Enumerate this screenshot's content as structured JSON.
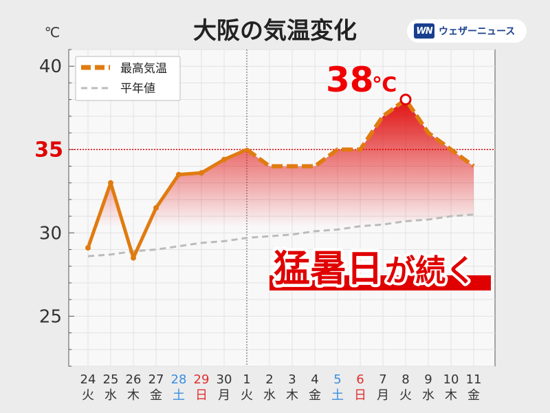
{
  "header": {
    "title": "大阪の気温変化",
    "unit": "℃"
  },
  "logo": {
    "mark": "WN",
    "text": "ウェザーニュース"
  },
  "annotations": {
    "peak_value": "38",
    "peak_unit": "℃",
    "threshold_label": "35",
    "banner_main": "猛暑日",
    "banner_sub": "が続く"
  },
  "colors": {
    "max_line": "#e07b10",
    "normal_line": "#bbbbbb",
    "fill": "#e01010",
    "threshold": "#e00000",
    "saturday": "#3a8ee0",
    "sunday": "#e03030",
    "banner_bg": "#e00000"
  },
  "chart_data": {
    "type": "line",
    "title": "大阪の気温変化",
    "ylabel": "℃",
    "ylim": [
      22,
      41
    ],
    "yticks": [
      25,
      30,
      35,
      40
    ],
    "threshold": 35,
    "grid": true,
    "legend_position": "top-left",
    "categories": [
      "24",
      "25",
      "26",
      "27",
      "28",
      "29",
      "30",
      "1",
      "2",
      "3",
      "4",
      "5",
      "6",
      "7",
      "8",
      "9",
      "10",
      "11"
    ],
    "weekdays": [
      "火",
      "水",
      "木",
      "金",
      "土",
      "日",
      "月",
      "火",
      "水",
      "木",
      "金",
      "土",
      "日",
      "月",
      "火",
      "水",
      "木",
      "金"
    ],
    "series": [
      {
        "name": "最高気温",
        "values": [
          29.1,
          33.0,
          28.5,
          31.5,
          33.5,
          33.6,
          34.4,
          35.0,
          34.0,
          34.0,
          34.0,
          35.0,
          35.0,
          37.0,
          38.0,
          36.0,
          35.0,
          34.0
        ]
      },
      {
        "name": "平年値",
        "values": [
          28.6,
          28.7,
          28.9,
          29.0,
          29.2,
          29.4,
          29.5,
          29.7,
          29.8,
          29.9,
          30.1,
          30.2,
          30.4,
          30.5,
          30.7,
          30.8,
          31.0,
          31.1
        ]
      }
    ]
  }
}
